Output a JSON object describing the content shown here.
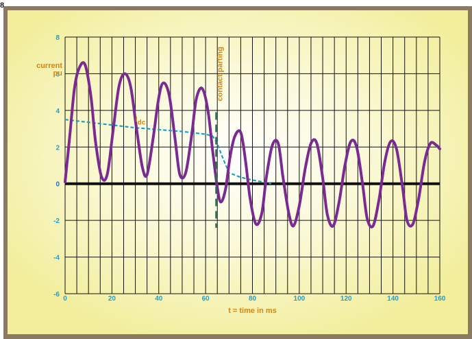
{
  "figure_label": "8",
  "colors": {
    "background": "#f7f3a6",
    "frame": "#8a7a60",
    "grid": "#111111",
    "current_curve": "#7a2a90",
    "dc_curve": "#1aa0c8",
    "contact_line": "#2e6b50",
    "annotation": "#d4860f",
    "tick_label": "#1f9fcf"
  },
  "chart_data": {
    "type": "line",
    "title": "",
    "xlabel": "t = time in ms",
    "ylabel_line1": "current",
    "ylabel_line2": "pu",
    "xlim": [
      0,
      160
    ],
    "ylim": [
      -6,
      8
    ],
    "x_ticks": [
      0,
      20,
      40,
      60,
      80,
      100,
      120,
      140,
      160
    ],
    "x_tick_labels": [
      "0",
      "20",
      "40",
      "60",
      "80",
      "100",
      "120",
      "140",
      "160"
    ],
    "y_ticks": [
      -6,
      -4,
      -2,
      0,
      2,
      4,
      6,
      8
    ],
    "y_tick_labels": [
      "-6",
      "-4",
      "-2",
      "0",
      "2",
      "4",
      "6",
      "8"
    ],
    "grid": true,
    "zero_line": true,
    "series": [
      {
        "id": "current",
        "x": [
          0,
          2,
          4,
          6,
          8.5,
          11,
          13,
          15.5,
          18,
          20.5,
          23,
          25.5,
          28,
          30.5,
          33,
          35,
          37.5,
          40,
          42,
          44.5,
          47,
          49,
          51.5,
          54,
          56,
          58.5,
          61,
          63,
          65,
          66.5,
          68.5,
          70.5,
          72.5,
          75,
          77,
          79,
          81.5,
          84,
          86,
          88.5,
          91,
          93,
          95.5,
          97.5,
          100,
          102.5,
          105,
          107.5,
          110,
          112,
          114.5,
          117,
          119.5,
          122,
          124.5,
          127,
          129,
          131.5,
          134,
          136.5,
          139,
          141.5,
          144,
          146,
          148.5,
          151,
          153.5,
          156,
          158.5,
          160
        ],
        "y": [
          0.1,
          2.6,
          5.2,
          6.3,
          6.5,
          4.8,
          2.3,
          0.4,
          0.5,
          2.9,
          5.3,
          6.0,
          5.3,
          3.0,
          0.9,
          0.5,
          2.4,
          4.7,
          5.5,
          4.8,
          2.4,
          0.5,
          0.6,
          2.6,
          4.6,
          5.2,
          4.0,
          1.8,
          -0.2,
          -1.0,
          -0.3,
          1.5,
          2.6,
          2.8,
          1.3,
          -0.8,
          -2.2,
          -1.6,
          0.4,
          2.1,
          2.2,
          0.4,
          -1.6,
          -2.3,
          -1.2,
          0.8,
          2.2,
          2.2,
          0.3,
          -1.7,
          -2.3,
          -1.0,
          1.0,
          2.3,
          2.0,
          0.0,
          -1.9,
          -2.3,
          -0.9,
          1.2,
          2.3,
          1.9,
          -0.1,
          -2.0,
          -2.2,
          -0.8,
          1.2,
          2.2,
          2.1,
          1.9
        ]
      },
      {
        "id": "dc",
        "x": [
          0,
          10,
          20,
          30,
          40,
          50,
          60,
          63,
          65,
          67,
          70,
          75,
          80,
          85,
          88
        ],
        "y": [
          3.5,
          3.35,
          3.2,
          3.05,
          2.95,
          2.85,
          2.7,
          2.6,
          2.2,
          1.5,
          0.6,
          0.35,
          0.2,
          0.08,
          0.0
        ]
      }
    ],
    "annotations": {
      "contact_parting": {
        "x": 64.5,
        "label": "contact parting"
      },
      "idc": {
        "x": 30,
        "y": 3.0,
        "label_main": "I",
        "label_sub": "dc"
      }
    }
  }
}
